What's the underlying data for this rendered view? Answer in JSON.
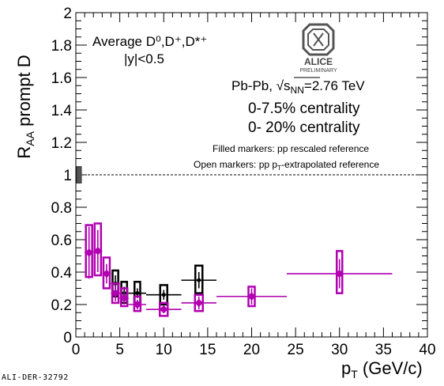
{
  "footer_id": "ALI-DER-32792",
  "chart_data": {
    "type": "scatter",
    "title": "",
    "xlabel": "p_T (GeV/c)",
    "xlabel_main": "p",
    "xlabel_sub": "T",
    "xlabel_unit": " (GeV/c)",
    "ylabel": "R_AA prompt D",
    "ylabel_main": "R",
    "ylabel_sub": "AA",
    "ylabel_rest": " prompt D",
    "xlim": [
      0,
      40
    ],
    "ylim": [
      0,
      2
    ],
    "x_ticks": [
      0,
      5,
      10,
      15,
      20,
      25,
      30,
      35,
      40
    ],
    "y_ticks": [
      0,
      0.2,
      0.4,
      0.6,
      0.8,
      1,
      1.2,
      1.4,
      1.6,
      1.8,
      2
    ],
    "y_tick_labels": [
      "0",
      "0.2",
      "0.4",
      "0.6",
      "0.8",
      "1",
      "1.2",
      "1.4",
      "1.6",
      "1.8",
      "2"
    ],
    "reference_line": 1,
    "annotations": {
      "species": "Average D⁰,D⁺,D*⁺",
      "rapidity": "|y|<0.5",
      "system_prefix": "Pb-Pb, ",
      "system_sqrt": "√",
      "system_s": "s",
      "system_nn": "NN",
      "system_suffix": "=2.76 TeV",
      "centrality_1": "0-7.5% centrality",
      "centrality_2": "0- 20% centrality",
      "filled_markers": "Filled markers: pp rescaled reference",
      "open_markers_pre": "Open markers: pp p",
      "open_markers_sub": "T",
      "open_markers_post": "-extrapolated reference",
      "logo_text": "ALICE",
      "logo_sub": "PRELIMINARY"
    },
    "series": [
      {
        "name": "0-7.5% centrality",
        "color": "#b000b0",
        "points": [
          {
            "x": 1.5,
            "xerr": 0.5,
            "y": 0.52,
            "stat": 0.16,
            "sys": [
              0.37,
              0.69
            ]
          },
          {
            "x": 2.5,
            "xerr": 0.5,
            "y": 0.53,
            "stat": 0.13,
            "sys": [
              0.38,
              0.7
            ]
          },
          {
            "x": 3.5,
            "xerr": 0.5,
            "y": 0.39,
            "stat": 0.06,
            "sys": [
              0.3,
              0.49
            ]
          },
          {
            "x": 4.5,
            "xerr": 0.5,
            "y": 0.27,
            "stat": 0.05,
            "sys": [
              0.21,
              0.33
            ]
          },
          {
            "x": 5.5,
            "xerr": 0.5,
            "y": 0.24,
            "stat": 0.04,
            "sys": [
              0.19,
              0.3
            ]
          },
          {
            "x": 7.0,
            "xerr": 1.0,
            "y": 0.2,
            "stat": 0.03,
            "sys": [
              0.16,
              0.25
            ]
          },
          {
            "x": 10.0,
            "xerr": 2.0,
            "y": 0.17,
            "stat": 0.02,
            "sys": [
              0.13,
              0.21
            ]
          },
          {
            "x": 14.0,
            "xerr": 2.0,
            "y": 0.21,
            "stat": 0.04,
            "sys": [
              0.16,
              0.26
            ]
          },
          {
            "x": 20.0,
            "xerr": 4.0,
            "y": 0.25,
            "stat": 0.05,
            "sys": [
              0.19,
              0.31
            ]
          },
          {
            "x": 30.0,
            "xerr": 6.0,
            "y": 0.39,
            "stat": 0.09,
            "sys": [
              0.27,
              0.53
            ]
          }
        ]
      },
      {
        "name": "0- 20% centrality",
        "color": "#000000",
        "points": [
          {
            "x": 4.5,
            "xerr": 0.5,
            "y": 0.33,
            "stat": 0.05,
            "sys": [
              0.25,
              0.41
            ]
          },
          {
            "x": 5.5,
            "xerr": 0.5,
            "y": 0.27,
            "stat": 0.04,
            "sys": [
              0.21,
              0.34
            ]
          },
          {
            "x": 7.0,
            "xerr": 1.0,
            "y": 0.27,
            "stat": 0.03,
            "sys": [
              0.21,
              0.34
            ]
          },
          {
            "x": 10.0,
            "xerr": 2.0,
            "y": 0.26,
            "stat": 0.03,
            "sys": [
              0.2,
              0.32
            ]
          },
          {
            "x": 14.0,
            "xerr": 2.0,
            "y": 0.35,
            "stat": 0.05,
            "sys": [
              0.27,
              0.44
            ]
          }
        ]
      }
    ]
  }
}
